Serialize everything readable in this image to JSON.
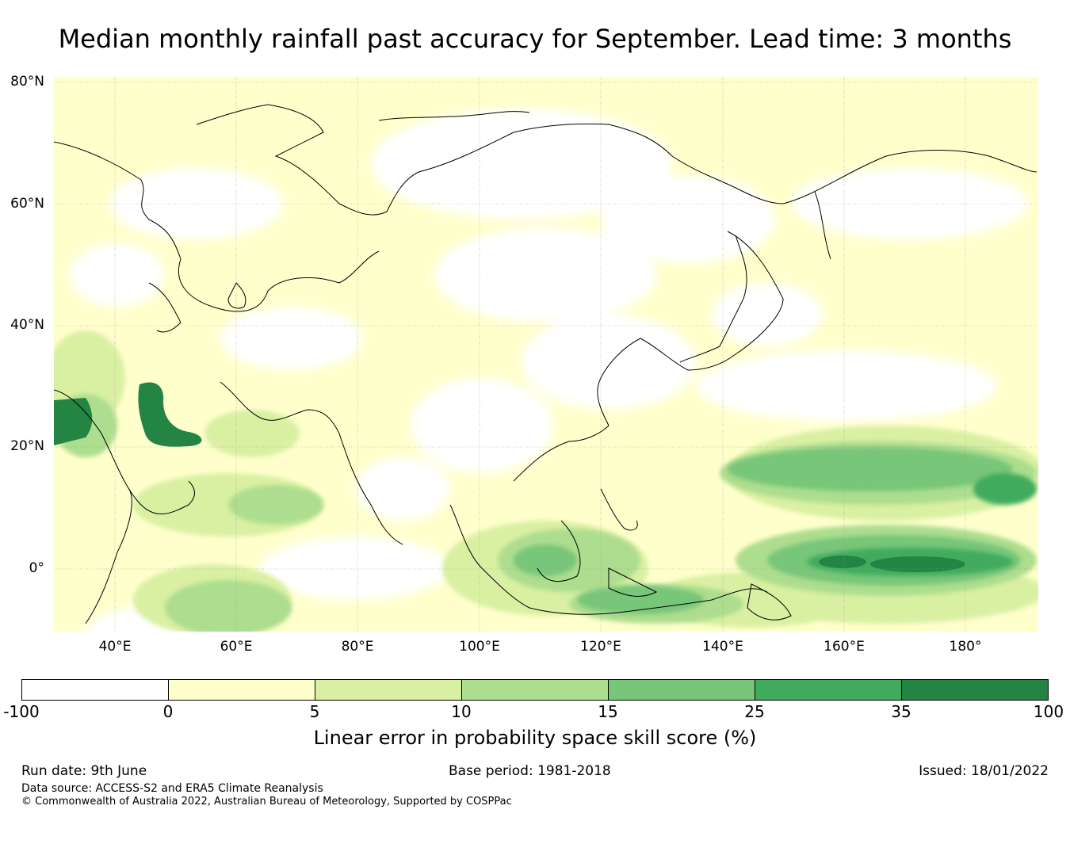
{
  "title": "Median monthly rainfall past accuracy for September. Lead time: 3 months",
  "map": {
    "lat_labels": [
      "80°N",
      "60°N",
      "40°N",
      "20°N",
      "0°"
    ],
    "lon_labels": [
      "40°E",
      "60°E",
      "80°E",
      "100°E",
      "120°E",
      "140°E",
      "160°E",
      "180°"
    ]
  },
  "colorbar": {
    "ticks": [
      "-100",
      "0",
      "5",
      "10",
      "15",
      "25",
      "35",
      "100"
    ],
    "colors": [
      "#ffffff",
      "#ffffcc",
      "#d9f0a3",
      "#addd8e",
      "#78c679",
      "#41ab5d",
      "#238443"
    ],
    "label": "Linear error in probability space skill score (%)"
  },
  "footer": {
    "run_date": "Run date: 9th June",
    "base_period": "Base period: 1981-2018",
    "issued": "Issued: 18/01/2022",
    "data_source": "Data source: ACCESS-S2 and ERA5 Climate Reanalysis",
    "copyright": "© Commonwealth of Australia 2022, Australian Bureau of Meteorology, Supported by COSPPac"
  }
}
